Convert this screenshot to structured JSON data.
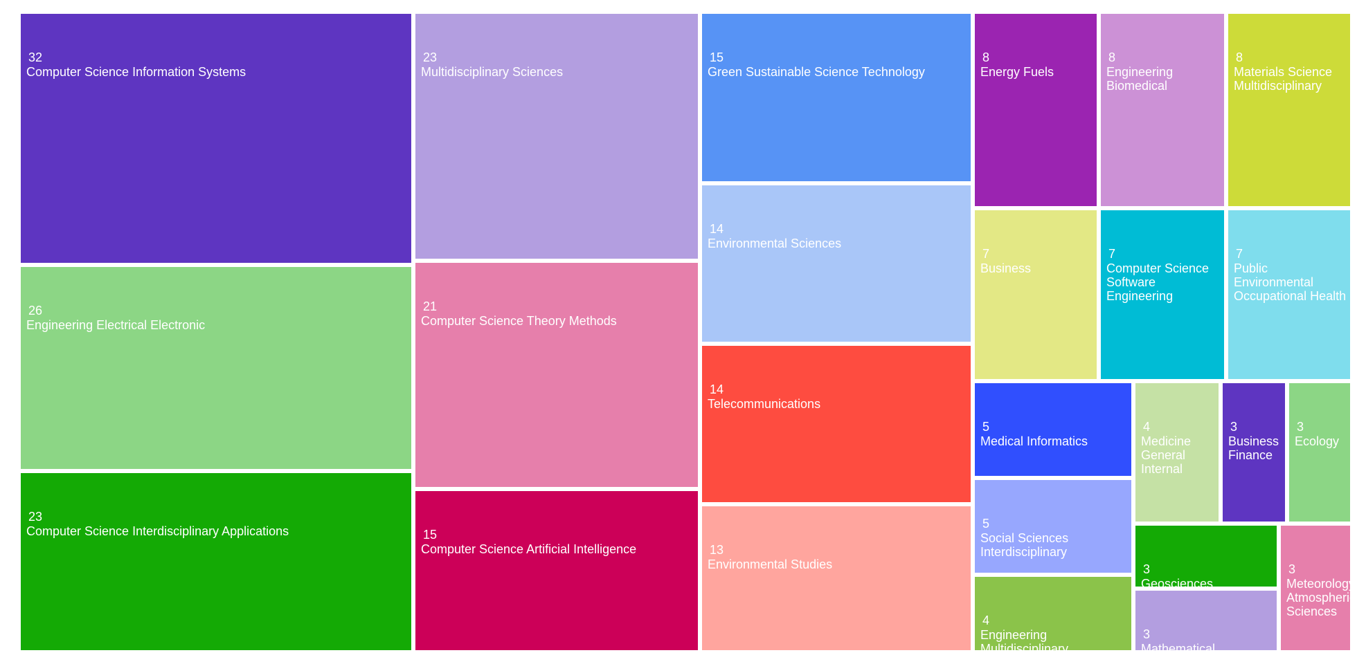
{
  "chart_data": {
    "type": "treemap",
    "title": "",
    "items": [
      {
        "name": "Computer Science Information Systems",
        "value": 32,
        "color": "#5e35c1"
      },
      {
        "name": "Engineering Electrical Electronic",
        "value": 26,
        "color": "#8cd685"
      },
      {
        "name": "Computer Science Interdisciplinary Applications",
        "value": 23,
        "color": "#14aa05"
      },
      {
        "name": "Multidisciplinary Sciences",
        "value": 23,
        "color": "#b39ee0"
      },
      {
        "name": "Computer Science Theory Methods",
        "value": 21,
        "color": "#e67fab"
      },
      {
        "name": "Computer Science Artificial Intelligence",
        "value": 15,
        "color": "#cc0058"
      },
      {
        "name": "Green Sustainable Science Technology",
        "value": 15,
        "color": "#5793f5"
      },
      {
        "name": "Environmental Sciences",
        "value": 14,
        "color": "#a9c6f8"
      },
      {
        "name": "Telecommunications",
        "value": 14,
        "color": "#fe4c40"
      },
      {
        "name": "Environmental Studies",
        "value": 13,
        "color": "#ffa59e"
      },
      {
        "name": "Energy Fuels",
        "value": 8,
        "color": "#9b24b1"
      },
      {
        "name": "Engineering Biomedical",
        "value": 8,
        "color": "#cc91d6"
      },
      {
        "name": "Materials Science Multidisciplinary",
        "value": 8,
        "color": "#cddb39"
      },
      {
        "name": "Business",
        "value": 7,
        "color": "#e3e885"
      },
      {
        "name": "Computer Science Software Engineering",
        "value": 7,
        "color": "#00bcd5"
      },
      {
        "name": "Public Environmental Occupational Health",
        "value": 7,
        "color": "#7fdded"
      },
      {
        "name": "Medical Informatics",
        "value": 5,
        "color": "#304ffe"
      },
      {
        "name": "Social Sciences Interdisciplinary",
        "value": 5,
        "color": "#97a7fe"
      },
      {
        "name": "Engineering Multidisciplinary",
        "value": 4,
        "color": "#8bc34a"
      },
      {
        "name": "Medicine General Internal",
        "value": 4,
        "color": "#c5e1a5"
      },
      {
        "name": "Business Finance",
        "value": 3,
        "color": "#5e35c1"
      },
      {
        "name": "Ecology",
        "value": 3,
        "color": "#8cd685"
      },
      {
        "name": "Geosciences",
        "value": 3,
        "color": "#14aa05"
      },
      {
        "name": "Mathematical",
        "value": 3,
        "color": "#b39ee0"
      },
      {
        "name": "Meteorology Atmospheric Sciences",
        "value": 3,
        "color": "#e67fab"
      }
    ]
  }
}
